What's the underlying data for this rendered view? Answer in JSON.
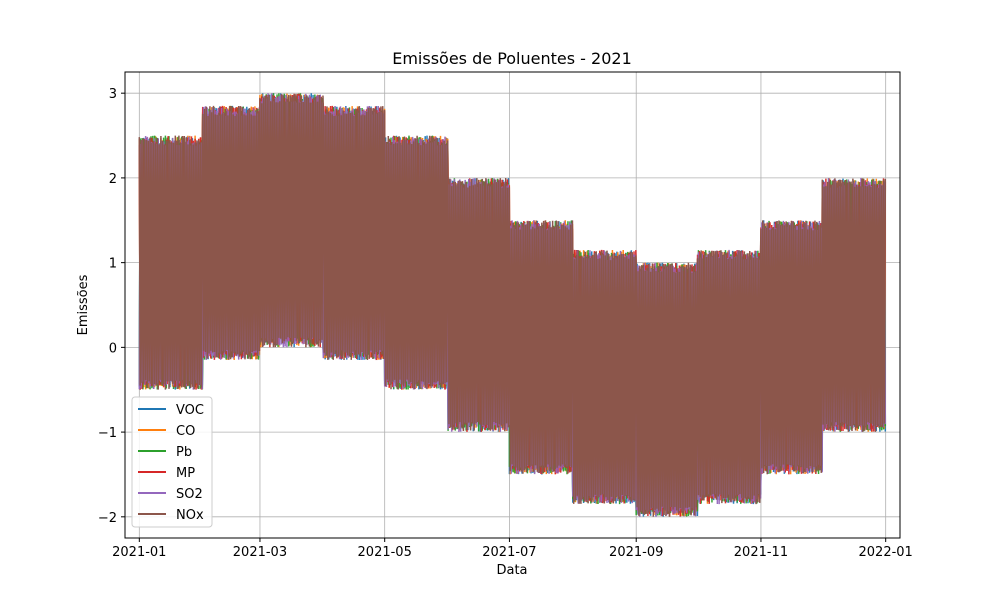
{
  "chart_data": {
    "type": "line",
    "title": "Emissões de Poluentes - 2021",
    "xlabel": "Data",
    "ylabel": "Emissões",
    "xlim": [
      "2020-12-25",
      "2022-01-08"
    ],
    "ylim": [
      -2.25,
      3.25
    ],
    "grid": true,
    "legend_position": "lower-left",
    "x_ticks": [
      "2021-01",
      "2021-03",
      "2021-05",
      "2021-07",
      "2021-09",
      "2021-11",
      "2022-01"
    ],
    "y_ticks": [
      -2,
      -1,
      0,
      1,
      2,
      3
    ],
    "y_tick_labels": [
      "−2",
      "−1",
      "0",
      "1",
      "2",
      "3"
    ],
    "series": [
      {
        "name": "VOC",
        "color": "#1f77b4"
      },
      {
        "name": "CO",
        "color": "#ff7f0e"
      },
      {
        "name": "Pb",
        "color": "#2ca02c"
      },
      {
        "name": "MP",
        "color": "#d62728"
      },
      {
        "name": "SO2",
        "color": "#9467bd"
      },
      {
        "name": "NOx",
        "color": "#8c564b"
      }
    ],
    "monthly_bands": [
      {
        "month": "2021-01",
        "min": -0.5,
        "max": 2.5
      },
      {
        "month": "2021-02",
        "min": -0.15,
        "max": 2.85
      },
      {
        "month": "2021-03",
        "min": 0.0,
        "max": 3.0
      },
      {
        "month": "2021-04",
        "min": -0.15,
        "max": 2.85
      },
      {
        "month": "2021-05",
        "min": -0.5,
        "max": 2.5
      },
      {
        "month": "2021-06",
        "min": -1.0,
        "max": 2.0
      },
      {
        "month": "2021-07",
        "min": -1.5,
        "max": 1.5
      },
      {
        "month": "2021-08",
        "min": -1.85,
        "max": 1.15
      },
      {
        "month": "2021-09",
        "min": -2.0,
        "max": 1.0
      },
      {
        "month": "2021-10",
        "min": -1.85,
        "max": 1.15
      },
      {
        "month": "2021-11",
        "min": -1.5,
        "max": 1.5
      },
      {
        "month": "2021-12",
        "min": -1.0,
        "max": 2.0
      }
    ]
  }
}
